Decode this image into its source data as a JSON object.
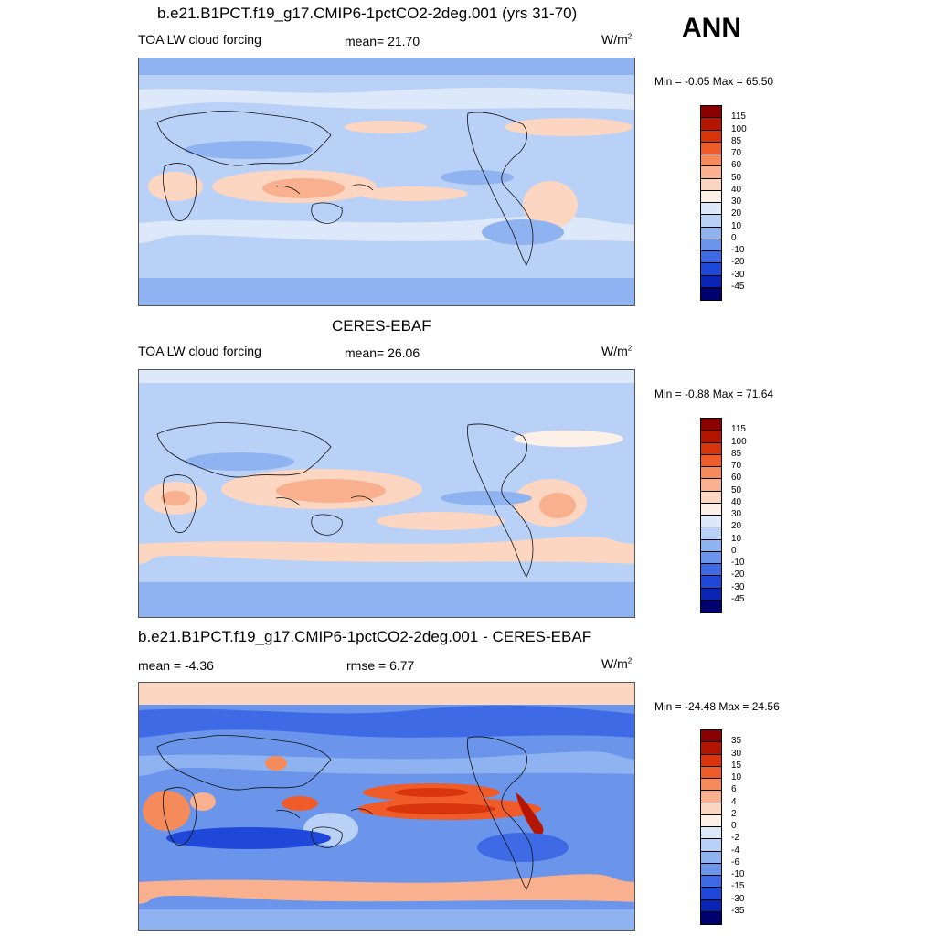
{
  "season": "ANN",
  "panels": [
    {
      "title": "b.e21.B1PCT.f19_g17.CMIP6-1pctCO2-2deg.001 (yrs 31-70)",
      "left_label": "TOA LW cloud forcing",
      "center_label": "mean=  21.70",
      "units": "W/m",
      "units_sup": "2",
      "minmax": "Min =  -0.05 Max =  65.50",
      "colorbar": {
        "levels": [
          "115",
          "100",
          "85",
          "70",
          "60",
          "50",
          "40",
          "30",
          "20",
          "10",
          "0",
          "-10",
          "-20",
          "-30",
          "-45"
        ],
        "colors": [
          "#8b0000",
          "#b41500",
          "#d9350c",
          "#ef5c2a",
          "#f58a5a",
          "#f9b08e",
          "#fcd6c0",
          "#fdf0e6",
          "#dde9fb",
          "#b9d1f7",
          "#8fb3f0",
          "#6b95ea",
          "#3f6ae6",
          "#1f48d8",
          "#0a25b5",
          "#00006e"
        ]
      }
    },
    {
      "title": "CERES-EBAF",
      "left_label": "TOA LW cloud forcing",
      "center_label": "mean=  26.06",
      "units": "W/m",
      "units_sup": "2",
      "minmax": "Min =  -0.88 Max =  71.64",
      "colorbar": {
        "levels": [
          "115",
          "100",
          "85",
          "70",
          "60",
          "50",
          "40",
          "30",
          "20",
          "10",
          "0",
          "-10",
          "-20",
          "-30",
          "-45"
        ],
        "colors": [
          "#8b0000",
          "#b41500",
          "#d9350c",
          "#ef5c2a",
          "#f58a5a",
          "#f9b08e",
          "#fcd6c0",
          "#fdf0e6",
          "#dde9fb",
          "#b9d1f7",
          "#8fb3f0",
          "#6b95ea",
          "#3f6ae6",
          "#1f48d8",
          "#0a25b5",
          "#00006e"
        ]
      }
    },
    {
      "title": "b.e21.B1PCT.f19_g17.CMIP6-1pctCO2-2deg.001 - CERES-EBAF",
      "left_label": "mean =  -4.36",
      "center_label": "rmse =   6.77",
      "units": "W/m",
      "units_sup": "2",
      "minmax": "Min = -24.48 Max =  24.56",
      "colorbar": {
        "levels": [
          "35",
          "30",
          "15",
          "10",
          "6",
          "4",
          "2",
          "0",
          "-2",
          "-4",
          "-6",
          "-10",
          "-15",
          "-30",
          "-35"
        ],
        "colors": [
          "#8b0000",
          "#b41500",
          "#d9350c",
          "#ef5c2a",
          "#f58a5a",
          "#f9b08e",
          "#fcd6c0",
          "#fdf0e6",
          "#dde9fb",
          "#b9d1f7",
          "#8fb3f0",
          "#6b95ea",
          "#3f6ae6",
          "#1f48d8",
          "#0a25b5",
          "#00006e"
        ]
      }
    }
  ]
}
